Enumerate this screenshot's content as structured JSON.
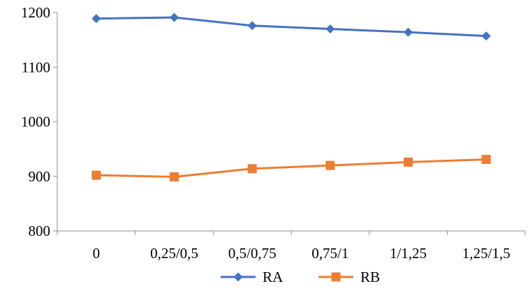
{
  "chart_data": {
    "type": "line",
    "categories": [
      "0",
      "0,25/0,5",
      "0,5/0,75",
      "0,75/1",
      "1/1,25",
      "1,25/1,5"
    ],
    "series": [
      {
        "name": "RA",
        "values": [
          1189,
          1191,
          1176,
          1170,
          1164,
          1157
        ],
        "color": "#4472C4",
        "marker": "diamond"
      },
      {
        "name": "RB",
        "values": [
          902,
          899,
          914,
          920,
          926,
          931
        ],
        "color": "#ED7D31",
        "marker": "square"
      }
    ],
    "ylim": [
      800,
      1200
    ],
    "yticks": [
      "800",
      "900",
      "1000",
      "1100",
      "1200"
    ],
    "xlabel": "",
    "ylabel": "",
    "grid": false,
    "legend_position": "bottom"
  }
}
